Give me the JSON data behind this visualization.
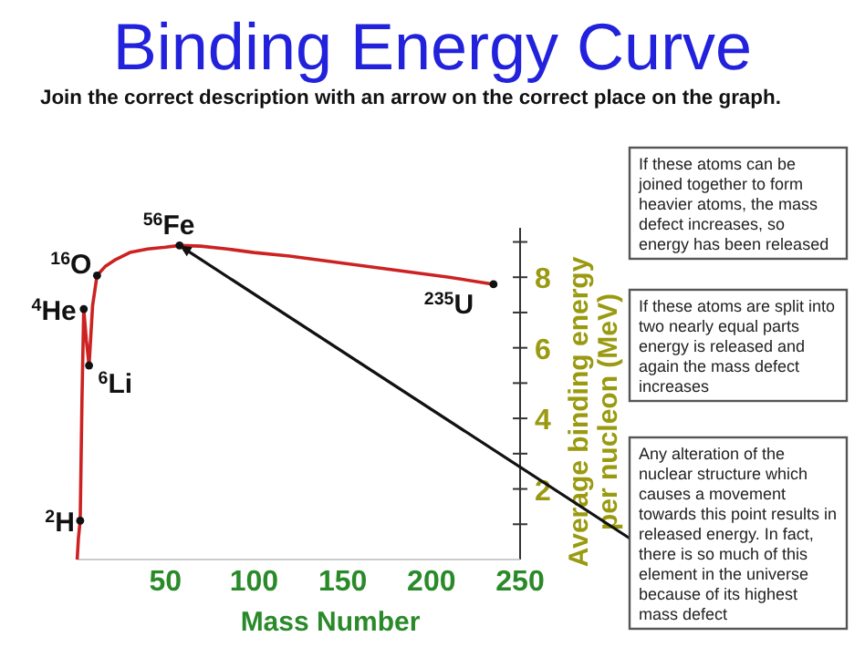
{
  "chart_data": {
    "type": "line",
    "title": "Binding Energy Curve",
    "subtitle": "Join the correct description with an arrow on the correct place on the graph.",
    "xlabel": "Mass Number",
    "ylabel": "Average binding energy per nucleon (MeV)",
    "xlim": [
      0,
      250
    ],
    "xticks": [
      50,
      100,
      150,
      200,
      250
    ],
    "ylim": [
      0,
      9.4
    ],
    "yticks": [
      {
        "value": 1,
        "label": null
      },
      2,
      {
        "value": 3,
        "label": null
      },
      4,
      {
        "value": 5,
        "label": null
      },
      6,
      {
        "value": 7,
        "label": null
      },
      8,
      {
        "value": 9,
        "label": null
      }
    ],
    "grid": false,
    "series": [
      {
        "color": "#cc2222",
        "marker": "none",
        "x": [
          0.3,
          1,
          2,
          3,
          4,
          5.5,
          7,
          9,
          11.5,
          16,
          22,
          30,
          40,
          50,
          58,
          70,
          85,
          100,
          120,
          150,
          180,
          210,
          235
        ],
        "values": [
          0,
          0.6,
          1.1,
          4.5,
          7.1,
          6.2,
          5.5,
          7.2,
          8.05,
          8.3,
          8.5,
          8.7,
          8.8,
          8.85,
          8.9,
          8.88,
          8.8,
          8.7,
          8.6,
          8.4,
          8.2,
          8.0,
          7.8
        ]
      },
      {
        "type": "scatter",
        "color": "#111111",
        "marker": "circle",
        "x": [
          2,
          4,
          7,
          11.5,
          58,
          235
        ],
        "values": [
          1.1,
          7.1,
          5.5,
          8.05,
          8.9,
          7.8
        ]
      }
    ],
    "annotations": [
      {
        "text": "$^{2}$H",
        "x": 2,
        "y": 1.1
      },
      {
        "text": "$^{4}$He",
        "x": 4,
        "y": 7.1
      },
      {
        "text": "$^{6}$Li",
        "x": 7,
        "y": 5.5
      },
      {
        "text": "$^{16}$O",
        "x": 11.5,
        "y": 8.05
      },
      {
        "text": "$^{56}$Fe",
        "x": 58,
        "y": 8.9
      },
      {
        "text": "$^{235}$U",
        "x": 235,
        "y": 7.8
      },
      "If these atoms can be joined together to form heavier atoms, the mass defect increases, so energy has been released",
      "If these atoms are split into two nearly equal parts energy is released and again the mass defect increases",
      "Any alteration of the nuclear structure which causes a movement towards this point results in released energy. In fact, there is so much of this element in the universe because of its highest mass defect"
    ]
  }
}
